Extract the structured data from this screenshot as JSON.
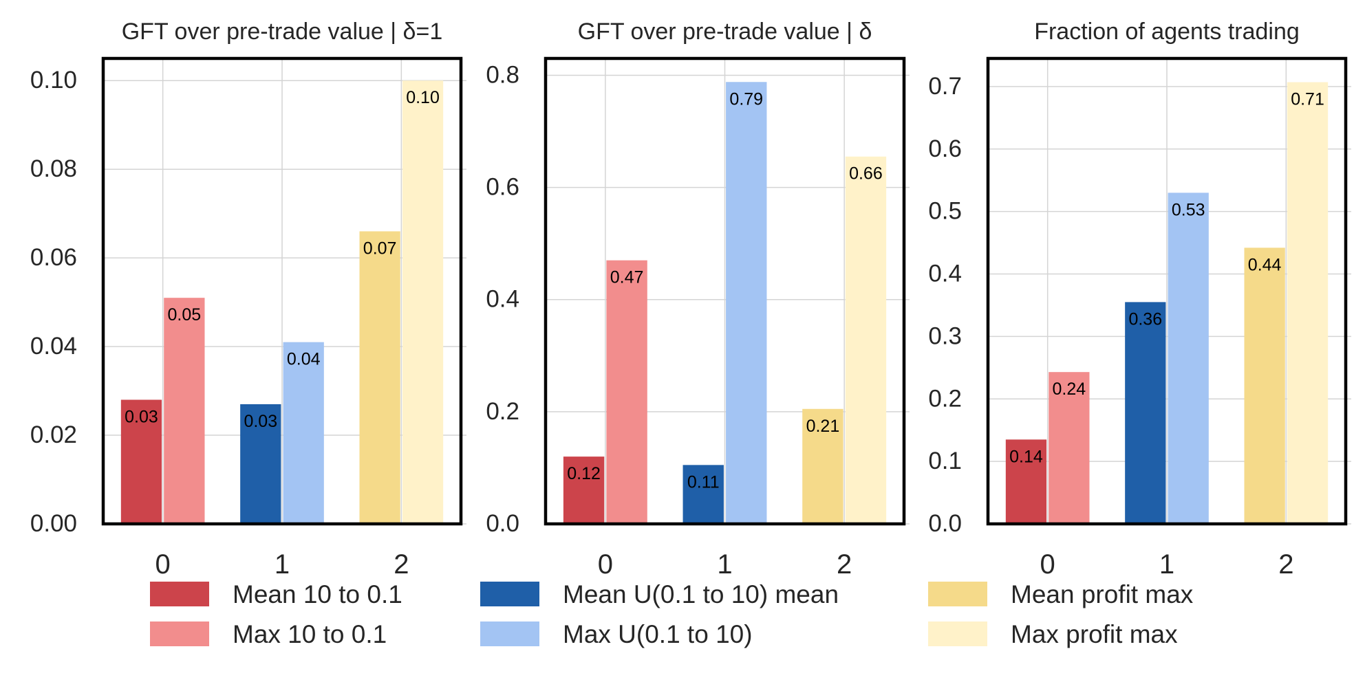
{
  "chart_data": [
    {
      "type": "bar",
      "title": "GFT over pre-trade value | δ=1",
      "xlabel": "",
      "ylabel": "",
      "categories": [
        "0",
        "1",
        "2"
      ],
      "ylim": [
        0,
        0.105
      ],
      "yticks": [
        "0.00",
        "0.02",
        "0.04",
        "0.06",
        "0.08",
        "0.10"
      ],
      "ytick_values": [
        0,
        0.02,
        0.04,
        0.06,
        0.08,
        0.1
      ],
      "grid": true,
      "bars": [
        {
          "category": "0",
          "series": "Mean 10 to 0.1",
          "value": 0.028,
          "label": "0.03"
        },
        {
          "category": "0",
          "series": "Max 10 to 0.1",
          "value": 0.051,
          "label": "0.05"
        },
        {
          "category": "1",
          "series": "Mean U(0.1 to 10) mean",
          "value": 0.027,
          "label": "0.03"
        },
        {
          "category": "1",
          "series": "Max U(0.1 to 10)",
          "value": 0.041,
          "label": "0.04"
        },
        {
          "category": "2",
          "series": "Mean profit max",
          "value": 0.066,
          "label": "0.07"
        },
        {
          "category": "2",
          "series": "Max profit max",
          "value": 0.1,
          "label": "0.10"
        }
      ]
    },
    {
      "type": "bar",
      "title": "GFT over pre-trade value | δ",
      "xlabel": "",
      "ylabel": "",
      "categories": [
        "0",
        "1",
        "2"
      ],
      "ylim": [
        0,
        0.83
      ],
      "yticks": [
        "0.0",
        "0.2",
        "0.4",
        "0.6",
        "0.8"
      ],
      "ytick_values": [
        0,
        0.2,
        0.4,
        0.6,
        0.8
      ],
      "grid": true,
      "bars": [
        {
          "category": "0",
          "series": "Mean 10 to 0.1",
          "value": 0.12,
          "label": "0.12"
        },
        {
          "category": "0",
          "series": "Max 10 to 0.1",
          "value": 0.47,
          "label": "0.47"
        },
        {
          "category": "1",
          "series": "Mean U(0.1 to 10) mean",
          "value": 0.105,
          "label": "0.11"
        },
        {
          "category": "1",
          "series": "Max U(0.1 to 10)",
          "value": 0.788,
          "label": "0.79"
        },
        {
          "category": "2",
          "series": "Mean profit max",
          "value": 0.205,
          "label": "0.21"
        },
        {
          "category": "2",
          "series": "Max profit max",
          "value": 0.655,
          "label": "0.66"
        }
      ]
    },
    {
      "type": "bar",
      "title": "Fraction of agents trading",
      "xlabel": "",
      "ylabel": "",
      "categories": [
        "0",
        "1",
        "2"
      ],
      "ylim": [
        0,
        0.745
      ],
      "yticks": [
        "0.0",
        "0.1",
        "0.2",
        "0.3",
        "0.4",
        "0.5",
        "0.6",
        "0.7"
      ],
      "ytick_values": [
        0,
        0.1,
        0.2,
        0.3,
        0.4,
        0.5,
        0.6,
        0.7
      ],
      "grid": true,
      "bars": [
        {
          "category": "0",
          "series": "Mean 10 to 0.1",
          "value": 0.135,
          "label": "0.14"
        },
        {
          "category": "0",
          "series": "Max 10 to 0.1",
          "value": 0.243,
          "label": "0.24"
        },
        {
          "category": "1",
          "series": "Mean U(0.1 to 10) mean",
          "value": 0.355,
          "label": "0.36"
        },
        {
          "category": "1",
          "series": "Max U(0.1 to 10)",
          "value": 0.53,
          "label": "0.53"
        },
        {
          "category": "2",
          "series": "Mean profit max",
          "value": 0.442,
          "label": "0.44"
        },
        {
          "category": "2",
          "series": "Max profit max",
          "value": 0.707,
          "label": "0.71"
        }
      ]
    }
  ],
  "legend": {
    "placement": "bottom",
    "entries": [
      {
        "label": "Mean 10 to 0.1",
        "color": "#cc444b"
      },
      {
        "label": "Max 10 to 0.1",
        "color": "#f28d8d"
      },
      {
        "label": "Mean U(0.1 to 10) mean",
        "color": "#1f5fa8"
      },
      {
        "label": "Max U(0.1 to 10)",
        "color": "#a3c4f3"
      },
      {
        "label": "Mean profit max",
        "color": "#f5da8a"
      },
      {
        "label": "Max profit max",
        "color": "#fff2c9"
      }
    ]
  },
  "colors": {
    "Mean 10 to 0.1": "#cc444b",
    "Max 10 to 0.1": "#f28d8d",
    "Mean U(0.1 to 10) mean": "#1f5fa8",
    "Max U(0.1 to 10)": "#a3c4f3",
    "Mean profit max": "#f5da8a",
    "Max profit max": "#fff2c9",
    "grid": "#d4d4d4",
    "frame": "#000000",
    "text": "#262626"
  }
}
